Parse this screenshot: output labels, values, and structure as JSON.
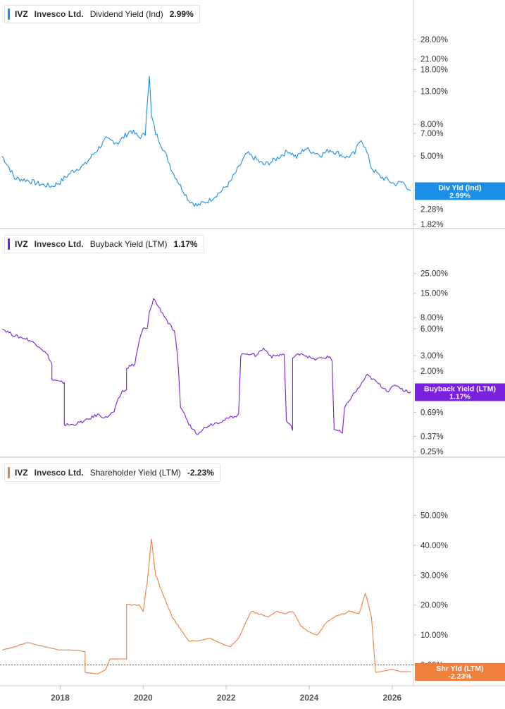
{
  "panels": [
    {
      "ticker": "IVZ",
      "company": "Invesco Ltd.",
      "metric": "Dividend Yield (Ind)",
      "value": "2.99%",
      "flag_label": "Div Yld (Ind)",
      "color": "#1b8fe8"
    },
    {
      "ticker": "IVZ",
      "company": "Invesco Ltd.",
      "metric": "Buyback Yield (LTM)",
      "value": "1.17%",
      "flag_label": "Buyback Yield (LTM)",
      "color": "#7b1fe0"
    },
    {
      "ticker": "IVZ",
      "company": "Invesco Ltd.",
      "metric": "Shareholder Yield (LTM)",
      "value": "-2.23%",
      "flag_label": "Shr Yld (LTM)",
      "color": "#f07f3c"
    }
  ],
  "x_ticks": [
    "2018",
    "2020",
    "2022",
    "2024",
    "2026"
  ],
  "chart_data": [
    {
      "type": "line",
      "title": "Dividend Yield (Ind)",
      "yscale": "log",
      "ylim": [
        1.82,
        40
      ],
      "y_ticks": [
        "28.00%",
        "21.00%",
        "18.00%",
        "13.00%",
        "8.00%",
        "7.00%",
        "5.00%",
        "3.00%",
        "2.28%",
        "1.82%"
      ],
      "y_tick_values": [
        28,
        21,
        18,
        13,
        8,
        7,
        5,
        3,
        2.28,
        1.82
      ],
      "x": [
        2016.6,
        2016.9,
        2017.2,
        2017.5,
        2017.8,
        2018.0,
        2018.3,
        2018.6,
        2018.9,
        2019.1,
        2019.4,
        2019.7,
        2019.9,
        2020.05,
        2020.15,
        2020.2,
        2020.3,
        2020.5,
        2020.7,
        2020.9,
        2021.1,
        2021.3,
        2021.6,
        2021.9,
        2022.1,
        2022.3,
        2022.5,
        2022.7,
        2022.9,
        2023.1,
        2023.3,
        2023.5,
        2023.7,
        2023.9,
        2024.1,
        2024.3,
        2024.5,
        2024.7,
        2024.9,
        2025.1,
        2025.25,
        2025.35,
        2025.5,
        2025.7,
        2025.9,
        2026.05,
        2026.25,
        2026.45
      ],
      "values": [
        5.0,
        3.6,
        3.5,
        3.3,
        3.2,
        3.4,
        4.0,
        4.4,
        5.5,
        6.4,
        6.1,
        7.3,
        6.6,
        6.9,
        16.0,
        9.0,
        7.0,
        5.4,
        4.0,
        3.2,
        2.6,
        2.4,
        2.6,
        3.0,
        3.4,
        4.2,
        5.2,
        4.8,
        4.4,
        4.6,
        5.0,
        5.4,
        4.9,
        5.6,
        5.3,
        5.1,
        5.5,
        5.2,
        4.9,
        5.2,
        6.5,
        5.6,
        4.2,
        3.7,
        3.5,
        3.3,
        3.4,
        2.99
      ]
    },
    {
      "type": "line",
      "title": "Buyback Yield (LTM)",
      "yscale": "log",
      "ylim": [
        0.25,
        40
      ],
      "y_ticks": [
        "25.00%",
        "15.00%",
        "8.00%",
        "6.00%",
        "3.00%",
        "2.00%",
        "0.69%",
        "0.37%",
        "0.25%"
      ],
      "y_tick_values": [
        25,
        15,
        8,
        6,
        3,
        2,
        0.69,
        0.37,
        0.25
      ],
      "x": [
        2016.6,
        2016.9,
        2017.2,
        2017.5,
        2017.7,
        2017.8,
        2017.8,
        2018.0,
        2018.1,
        2018.1,
        2018.3,
        2018.6,
        2018.9,
        2019.1,
        2019.3,
        2019.5,
        2019.6,
        2019.6,
        2019.8,
        2020.0,
        2020.1,
        2020.15,
        2020.25,
        2020.4,
        2020.6,
        2020.75,
        2020.85,
        2020.9,
        2021.1,
        2021.3,
        2021.6,
        2021.9,
        2022.1,
        2022.3,
        2022.35,
        2022.5,
        2022.7,
        2022.9,
        2023.1,
        2023.2,
        2023.4,
        2023.45,
        2023.6,
        2023.6,
        2023.8,
        2024.1,
        2024.3,
        2024.5,
        2024.55,
        2024.6,
        2024.8,
        2024.85,
        2025.0,
        2025.2,
        2025.4,
        2025.7,
        2025.9,
        2026.1,
        2026.3,
        2026.45
      ],
      "values": [
        6.0,
        5.0,
        4.6,
        3.8,
        3.0,
        2.4,
        1.6,
        1.5,
        1.5,
        0.5,
        0.5,
        0.55,
        0.65,
        0.6,
        0.7,
        1.2,
        1.2,
        2.2,
        2.4,
        6.0,
        6.0,
        9.0,
        13.0,
        10.0,
        7.0,
        5.5,
        2.0,
        0.8,
        0.5,
        0.4,
        0.5,
        0.55,
        0.6,
        0.65,
        3.0,
        3.2,
        3.0,
        3.6,
        2.9,
        3.0,
        3.1,
        0.55,
        0.45,
        2.8,
        3.2,
        2.7,
        2.8,
        2.9,
        2.6,
        0.45,
        0.4,
        0.75,
        1.0,
        1.3,
        1.8,
        1.4,
        1.2,
        1.4,
        1.2,
        1.17
      ]
    },
    {
      "type": "line",
      "title": "Shareholder Yield (LTM)",
      "ylim": [
        -6,
        60
      ],
      "y_ticks": [
        "50.00%",
        "40.00%",
        "30.00%",
        "20.00%",
        "10.00%",
        "0.00%"
      ],
      "y_tick_values": [
        50,
        40,
        30,
        20,
        10,
        0
      ],
      "x": [
        2016.6,
        2016.9,
        2017.2,
        2017.5,
        2017.8,
        2018.0,
        2018.3,
        2018.6,
        2018.6,
        2018.9,
        2019.1,
        2019.2,
        2019.4,
        2019.6,
        2019.6,
        2019.9,
        2020.0,
        2020.1,
        2020.2,
        2020.3,
        2020.5,
        2020.7,
        2020.9,
        2021.1,
        2021.3,
        2021.6,
        2021.9,
        2022.1,
        2022.3,
        2022.4,
        2022.6,
        2022.8,
        2023.0,
        2023.2,
        2023.4,
        2023.6,
        2023.8,
        2024.0,
        2024.2,
        2024.4,
        2024.6,
        2024.8,
        2025.0,
        2025.2,
        2025.35,
        2025.5,
        2025.6,
        2025.8,
        2026.0,
        2026.2,
        2026.45
      ],
      "values": [
        5.0,
        6.0,
        7.5,
        6.5,
        5.5,
        5.0,
        5.0,
        4.5,
        -2.5,
        -3.0,
        -1.5,
        2.0,
        2.0,
        2.0,
        20.0,
        20.0,
        18.0,
        28.0,
        42.0,
        30.0,
        23.0,
        16.0,
        12.0,
        8.0,
        8.0,
        9.0,
        7.0,
        6.0,
        9.0,
        12.0,
        18.0,
        17.0,
        16.0,
        18.0,
        17.0,
        18.0,
        13.0,
        11.0,
        10.0,
        14.0,
        16.0,
        17.0,
        18.0,
        17.0,
        24.0,
        16.0,
        -2.5,
        -2.0,
        -1.5,
        -2.2,
        -2.23
      ]
    }
  ]
}
